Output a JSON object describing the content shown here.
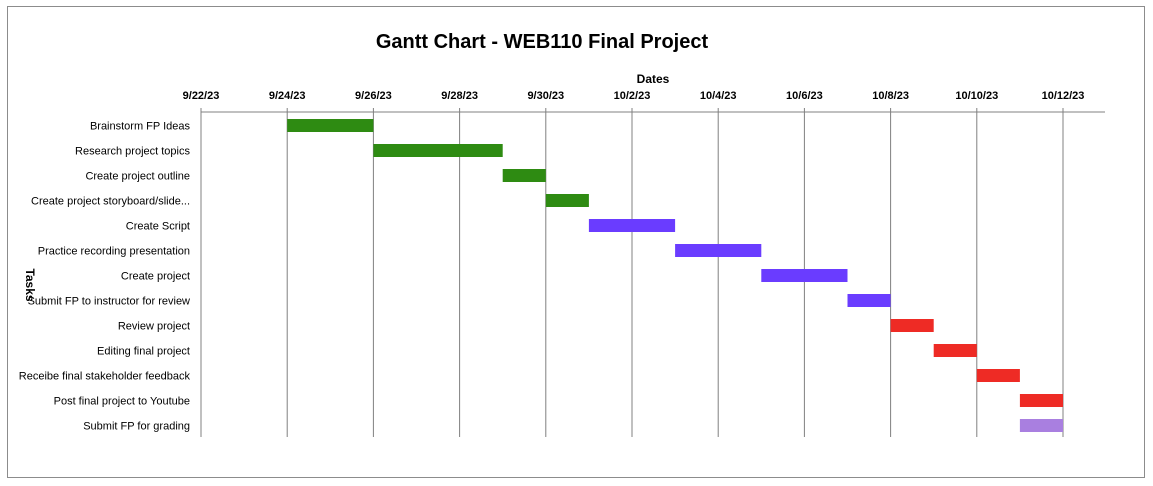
{
  "chart_data": {
    "type": "bar",
    "subtype": "gantt",
    "title": "Gantt Chart - WEB110 Final Project",
    "xlabel": "Dates",
    "ylabel": "Tasks",
    "x_axis_position": "top",
    "xlim": [
      "2023-09-22",
      "2023-10-13"
    ],
    "x_ticks": [
      "9/22/23",
      "9/24/23",
      "9/26/23",
      "9/28/23",
      "9/30/23",
      "10/2/23",
      "10/4/23",
      "10/6/23",
      "10/8/23",
      "10/10/23",
      "10/12/23"
    ],
    "grid": "vertical",
    "legend": "none",
    "tasks": [
      {
        "label": "Brainstorm FP Ideas",
        "start": "2023-09-24",
        "end": "2023-09-26",
        "color": "#2e8b12"
      },
      {
        "label": "Research project topics",
        "start": "2023-09-26",
        "end": "2023-09-29",
        "color": "#2e8b12"
      },
      {
        "label": "Create project outline",
        "start": "2023-09-29",
        "end": "2023-09-30",
        "color": "#2e8b12"
      },
      {
        "label": "Create project storyboard/slide...",
        "start": "2023-09-30",
        "end": "2023-10-01",
        "color": "#2e8b12"
      },
      {
        "label": "Create Script",
        "start": "2023-10-01",
        "end": "2023-10-03",
        "color": "#6a3cff"
      },
      {
        "label": "Practice recording presentation",
        "start": "2023-10-03",
        "end": "2023-10-05",
        "color": "#6a3cff"
      },
      {
        "label": "Create project",
        "start": "2023-10-05",
        "end": "2023-10-07",
        "color": "#6a3cff"
      },
      {
        "label": "Submit FP to instructor for review",
        "start": "2023-10-07",
        "end": "2023-10-08",
        "color": "#6a3cff"
      },
      {
        "label": "Review project",
        "start": "2023-10-08",
        "end": "2023-10-09",
        "color": "#ee2b25"
      },
      {
        "label": "Editing final project",
        "start": "2023-10-09",
        "end": "2023-10-10",
        "color": "#ee2b25"
      },
      {
        "label": "Receibe final stakeholder feedback",
        "start": "2023-10-10",
        "end": "2023-10-11",
        "color": "#ee2b25"
      },
      {
        "label": "Post final project to Youtube",
        "start": "2023-10-11",
        "end": "2023-10-12",
        "color": "#ee2b25"
      },
      {
        "label": "Submit FP for grading",
        "start": "2023-10-11",
        "end": "2023-10-12",
        "color": "#a97fe0"
      }
    ]
  }
}
